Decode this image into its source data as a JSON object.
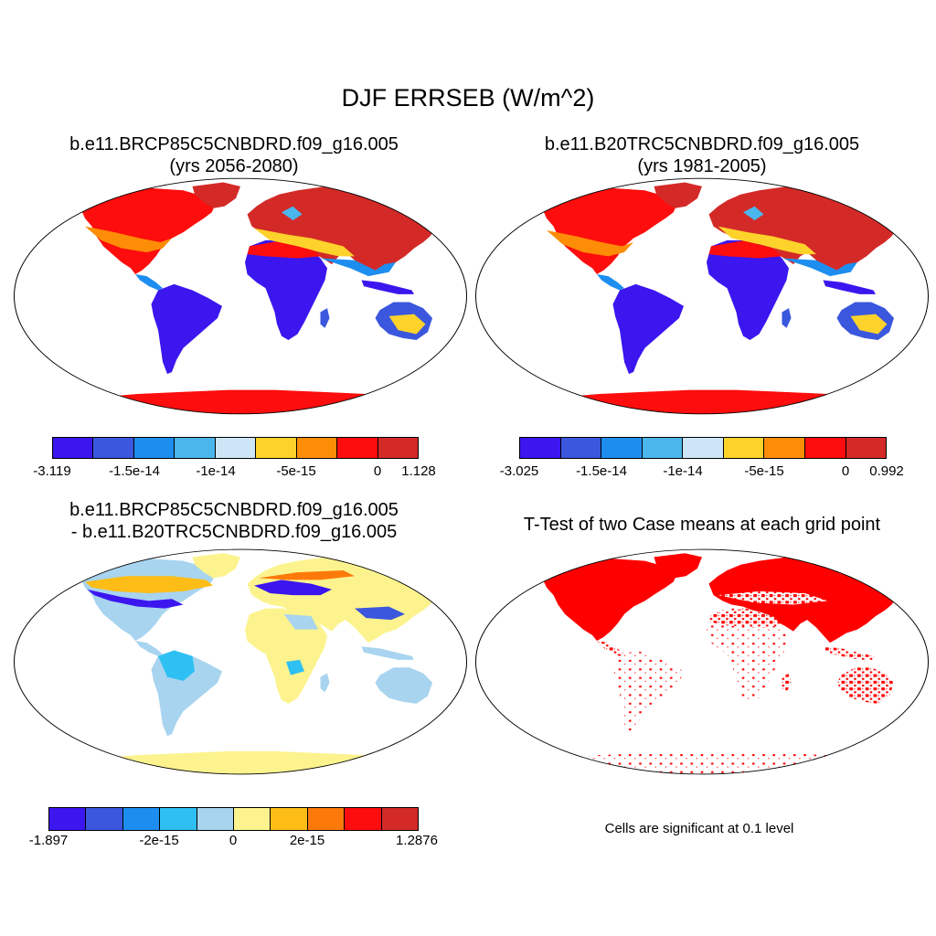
{
  "title": "DJF ERRSEB (W/m^2)",
  "panels": [
    {
      "id": "case1",
      "title_line1": "b.e11.BRCP85C5CNBDRD.f09_g16.005",
      "title_line2": "(yrs 2056-2080)",
      "colorbar": {
        "colors": [
          "#3b16ef",
          "#3a57dd",
          "#1d8ef0",
          "#4ab6ec",
          "#cde6f7",
          "#fdd22a",
          "#fd8d06",
          "#fd0d0d",
          "#d32a28"
        ],
        "tick_labels": [
          "-3.119",
          "-1.5e-14",
          "-1e-14",
          "-5e-15",
          "0",
          "1.128"
        ]
      }
    },
    {
      "id": "case2",
      "title_line1": "b.e11.B20TRC5CNBDRD.f09_g16.005",
      "title_line2": "(yrs 1981-2005)",
      "colorbar": {
        "colors": [
          "#3b16ef",
          "#3a57dd",
          "#1d8ef0",
          "#4ab6ec",
          "#cde6f7",
          "#fdd22a",
          "#fd8d06",
          "#fd0d0d",
          "#d32a28"
        ],
        "tick_labels": [
          "-3.025",
          "-1.5e-14",
          "-1e-14",
          "-5e-15",
          "0",
          "0.992"
        ]
      }
    },
    {
      "id": "difference",
      "title_line1": "b.e11.BRCP85C5CNBDRD.f09_g16.005",
      "title_line2": "- b.e11.B20TRC5CNBDRD.f09_g16.005",
      "colorbar": {
        "colors": [
          "#3b16ef",
          "#3a57dd",
          "#1d8ef0",
          "#2ec0f2",
          "#a8d4ef",
          "#fcf38e",
          "#fdbd16",
          "#fd7a0a",
          "#fd0d0d",
          "#d32a28"
        ],
        "tick_labels": [
          "-1.897",
          "-2e-15",
          "0",
          "2e-15",
          "1.2876"
        ]
      }
    },
    {
      "id": "ttest",
      "title_line1": "T-Test of two Case means at each grid point",
      "note": "Cells are significant at 0.1 level",
      "sig_color": "#ff0000"
    }
  ]
}
